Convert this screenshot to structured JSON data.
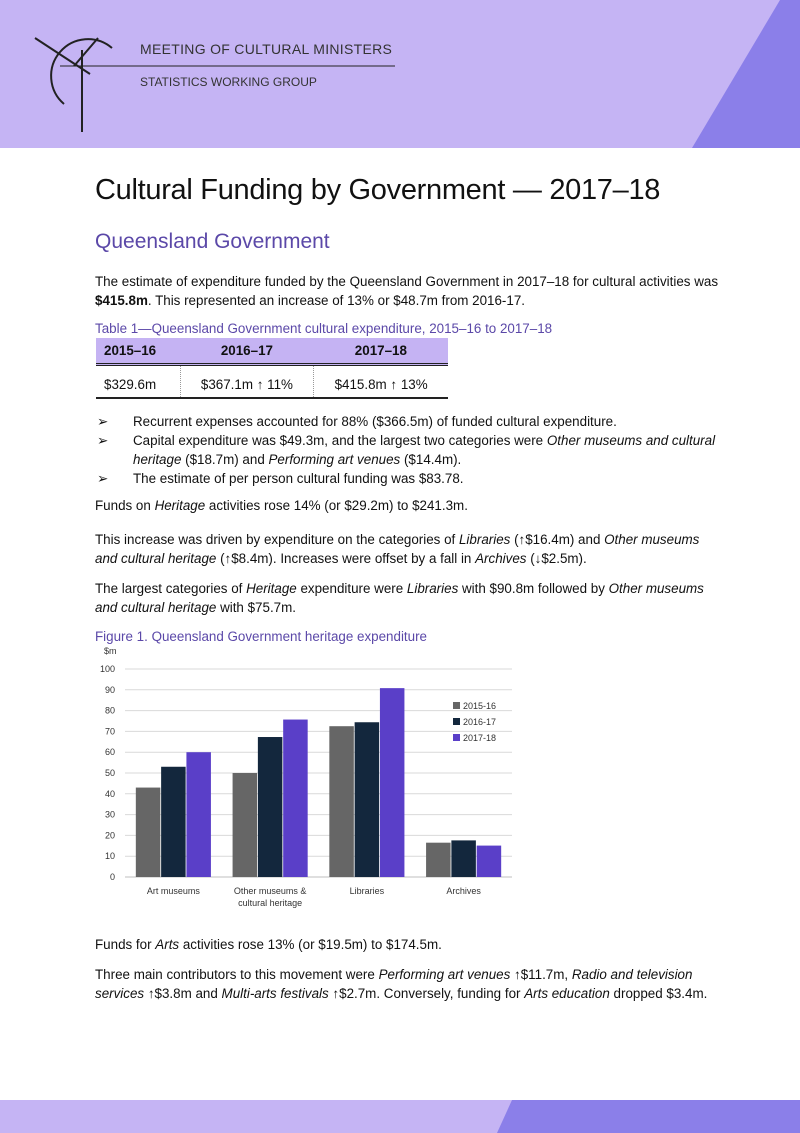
{
  "header": {
    "org": "MEETING OF CULTURAL MINISTERS",
    "group": "STATISTICS WORKING GROUP"
  },
  "title": "Cultural Funding by Government — 2017–18",
  "subtitle": "Queensland Government",
  "intro": [
    "The estimate of expenditure funded by the Queensland Government in 2017–18 for cultural activities was ",
    {
      "text": "$415.8m",
      "style": "bold"
    },
    ". This represented an increase of 13% or $48.7m from 2016-17."
  ],
  "table": {
    "caption": "Table 1—Queensland Government cultural expenditure, 2015–16 to 2017–18",
    "header": [
      "2015–16",
      "2016–17",
      "2017–18"
    ],
    "rows": [
      [
        "$329.6m",
        "$367.1m ↑ 11%",
        "$415.8m ↑ 13%"
      ]
    ]
  },
  "bullets": [
    [
      "Recurrent expenses accounted for 88% ($366.5m) of funded cultural expenditure."
    ],
    [
      "Capital expenditure was $49.3m, and the largest two categories were ",
      {
        "text": "Other museums and cultural heritage",
        "style": "italic"
      },
      " ($18.7m) and ",
      {
        "text": "Performing art venues",
        "style": "italic"
      },
      " ($14.4m)."
    ],
    [
      "The estimate of per person cultural funding was $83.78."
    ]
  ],
  "paragraphs_before": [
    [
      "Funds on ",
      {
        "text": "Heritage",
        "style": "italic"
      },
      " activities rose 14% (or $29.2m) to $241.3m."
    ],
    [
      "This increase was driven by expenditure on the categories of ",
      {
        "text": "Libraries",
        "style": "italic"
      },
      " (↑$16.4m) and ",
      {
        "text": "Other museums and cultural heritage",
        "style": "italic"
      },
      " (↑$8.4m). Increases were offset by a fall in ",
      {
        "text": "Archives",
        "style": "italic"
      },
      " (↓$2.5m)."
    ],
    [
      "The largest categories of ",
      {
        "text": "Heritage",
        "style": "italic"
      },
      " expenditure were ",
      {
        "text": "Libraries",
        "style": "italic"
      },
      " with $90.8m followed by ",
      {
        "text": "Other museums and cultural heritage",
        "style": "italic"
      },
      " with $75.7m."
    ]
  ],
  "chart_data": {
    "type": "bar",
    "title": "Figure 1. Queensland Government heritage expenditure",
    "y_label": "$m",
    "categories": [
      "Art museums",
      "Other museums & cultural heritage",
      "Libraries",
      "Archives"
    ],
    "series": [
      {
        "name": "2015-16",
        "color": "#666666",
        "values": [
          43,
          50,
          72.5,
          16.5
        ]
      },
      {
        "name": "2016-17",
        "color": "#13273d",
        "values": [
          53,
          67.3,
          74.4,
          17.6
        ]
      },
      {
        "name": "2017-18",
        "color": "#5a3fc8",
        "values": [
          60,
          75.7,
          90.8,
          15.1
        ]
      }
    ],
    "ylim": [
      0,
      100
    ],
    "yticks": [
      0,
      10,
      20,
      30,
      40,
      50,
      60,
      70,
      80,
      90,
      100
    ],
    "grid": true,
    "legend": "right"
  },
  "paragraphs_after": [
    [
      "Funds for ",
      {
        "text": "Arts",
        "style": "italic"
      },
      " activities rose 13% (or $19.5m) to $174.5m."
    ],
    [
      "Three main contributors to this movement were ",
      {
        "text": "Performing art venues",
        "style": "italic"
      },
      " ↑$11.7m, ",
      {
        "text": "Radio and television services",
        "style": "italic"
      },
      " ↑$3.8m and ",
      {
        "text": "Multi-arts festivals",
        "style": "italic"
      },
      " ↑$2.7m. Conversely, funding for ",
      {
        "text": "Arts education",
        "style": "italic"
      },
      " dropped $3.4m."
    ]
  ]
}
